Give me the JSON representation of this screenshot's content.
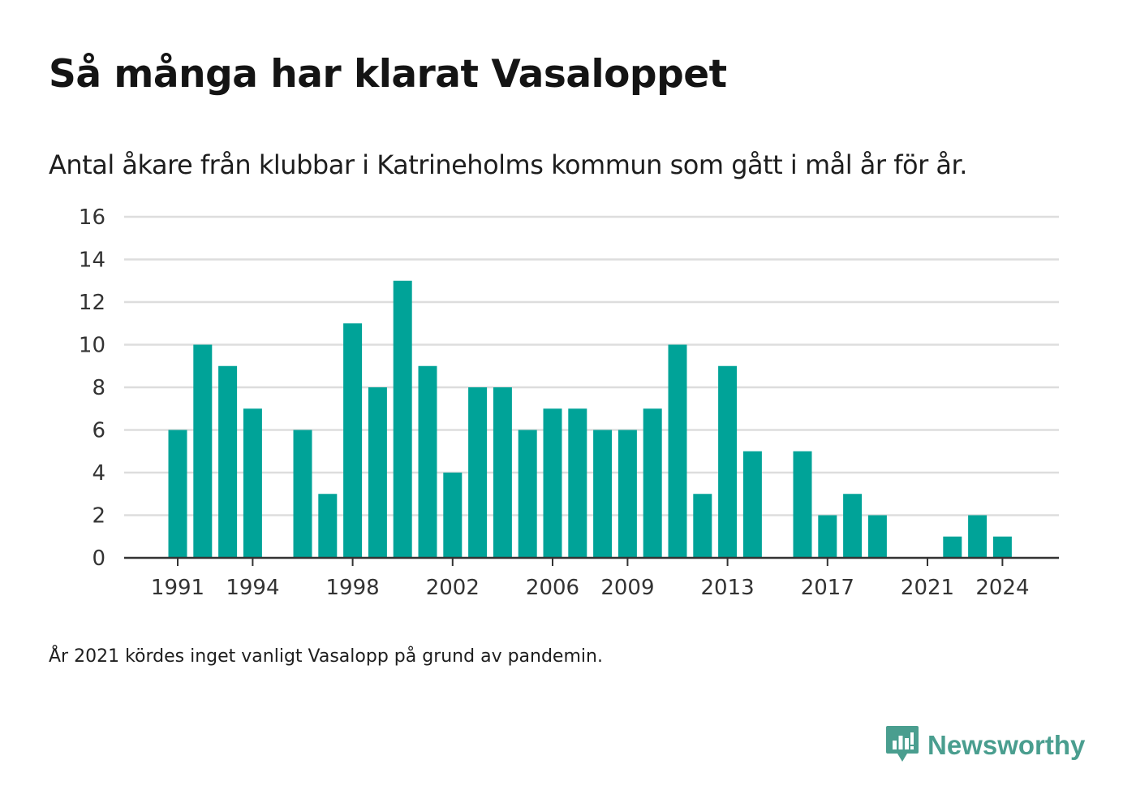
{
  "title": "Så många har klarat Vasaloppet",
  "subtitle": "Antal åkare från klubbar i Katrineholms kommun som gått i mål år för år.",
  "note": "År 2021 kördes inget vanligt Vasalopp på grund av pandemin.",
  "brand": {
    "name": "Newsworthy",
    "icon": "newsworthy-logo-icon",
    "color": "#4a9e8f"
  },
  "colors": {
    "bar": "#00a398",
    "grid": "#dddddd",
    "axis": "#333333",
    "tick_text": "#333333"
  },
  "chart_data": {
    "type": "bar",
    "x": [
      1991,
      1992,
      1993,
      1994,
      1995,
      1996,
      1997,
      1998,
      1999,
      2000,
      2001,
      2002,
      2003,
      2004,
      2005,
      2006,
      2007,
      2008,
      2009,
      2010,
      2011,
      2012,
      2013,
      2014,
      2015,
      2016,
      2017,
      2018,
      2019,
      2020,
      2021,
      2022,
      2023,
      2024
    ],
    "values": [
      6,
      10,
      9,
      7,
      0,
      6,
      3,
      11,
      8,
      13,
      9,
      4,
      8,
      8,
      6,
      7,
      7,
      6,
      6,
      7,
      10,
      3,
      9,
      5,
      0,
      5,
      2,
      3,
      2,
      0,
      0,
      1,
      2,
      1
    ],
    "x_tick_labels": [
      1991,
      1994,
      1998,
      2002,
      2006,
      2009,
      2013,
      2017,
      2021,
      2024
    ],
    "y_ticks": [
      0,
      2,
      4,
      6,
      8,
      10,
      12,
      14,
      16
    ],
    "ylim": [
      0,
      16
    ],
    "xlabel": "",
    "ylabel": "",
    "grid": true,
    "legend": "none"
  }
}
